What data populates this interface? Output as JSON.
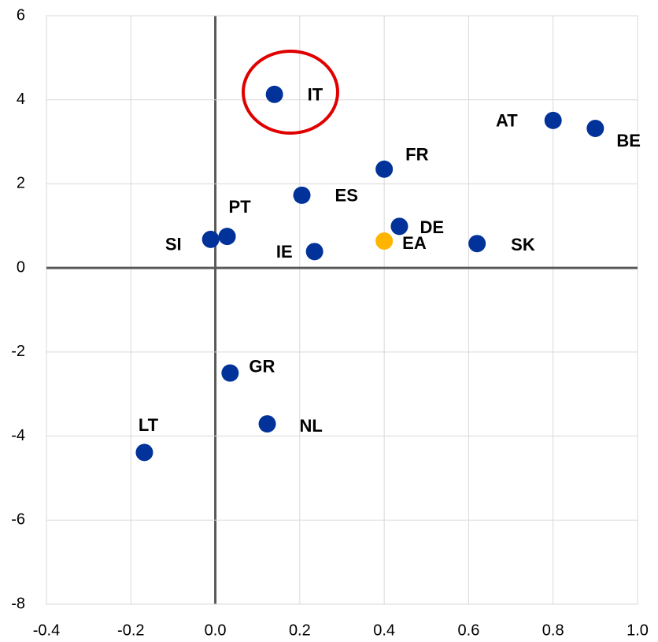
{
  "chart_data": {
    "type": "scatter",
    "points": [
      {
        "label": "IT",
        "x": 0.14,
        "y": 4.13,
        "color": "#003299"
      },
      {
        "label": "AT",
        "x": 0.8,
        "y": 3.51,
        "color": "#003299"
      },
      {
        "label": "BE",
        "x": 0.9,
        "y": 3.32,
        "color": "#003299"
      },
      {
        "label": "FR",
        "x": 0.4,
        "y": 2.35,
        "color": "#003299"
      },
      {
        "label": "ES",
        "x": 0.205,
        "y": 1.73,
        "color": "#003299"
      },
      {
        "label": "PT",
        "x": 0.028,
        "y": 0.75,
        "color": "#003299"
      },
      {
        "label": "SI",
        "x": -0.011,
        "y": 0.68,
        "color": "#003299"
      },
      {
        "label": "DE",
        "x": 0.436,
        "y": 0.99,
        "color": "#003299"
      },
      {
        "label": "EA",
        "x": 0.4,
        "y": 0.64,
        "color": "#ffb400"
      },
      {
        "label": "SK",
        "x": 0.62,
        "y": 0.58,
        "color": "#003299"
      },
      {
        "label": "IE",
        "x": 0.235,
        "y": 0.39,
        "color": "#003299"
      },
      {
        "label": "GR",
        "x": 0.035,
        "y": -2.5,
        "color": "#003299"
      },
      {
        "label": "NL",
        "x": 0.123,
        "y": -3.71,
        "color": "#003299"
      },
      {
        "label": "LT",
        "x": -0.168,
        "y": -4.39,
        "color": "#003299"
      }
    ],
    "xlim": [
      -0.4,
      1.0
    ],
    "ylim": [
      -8,
      6
    ],
    "xticks": [
      -0.4,
      -0.2,
      {
        "value": 0,
        "label": "0.0"
      },
      0.2,
      0.4,
      0.6,
      0.8,
      {
        "value": 1,
        "label": "1.0"
      }
    ],
    "yticks": [
      -8,
      -6,
      -4,
      -2,
      0,
      2,
      4,
      6
    ],
    "grid": true
  }
}
